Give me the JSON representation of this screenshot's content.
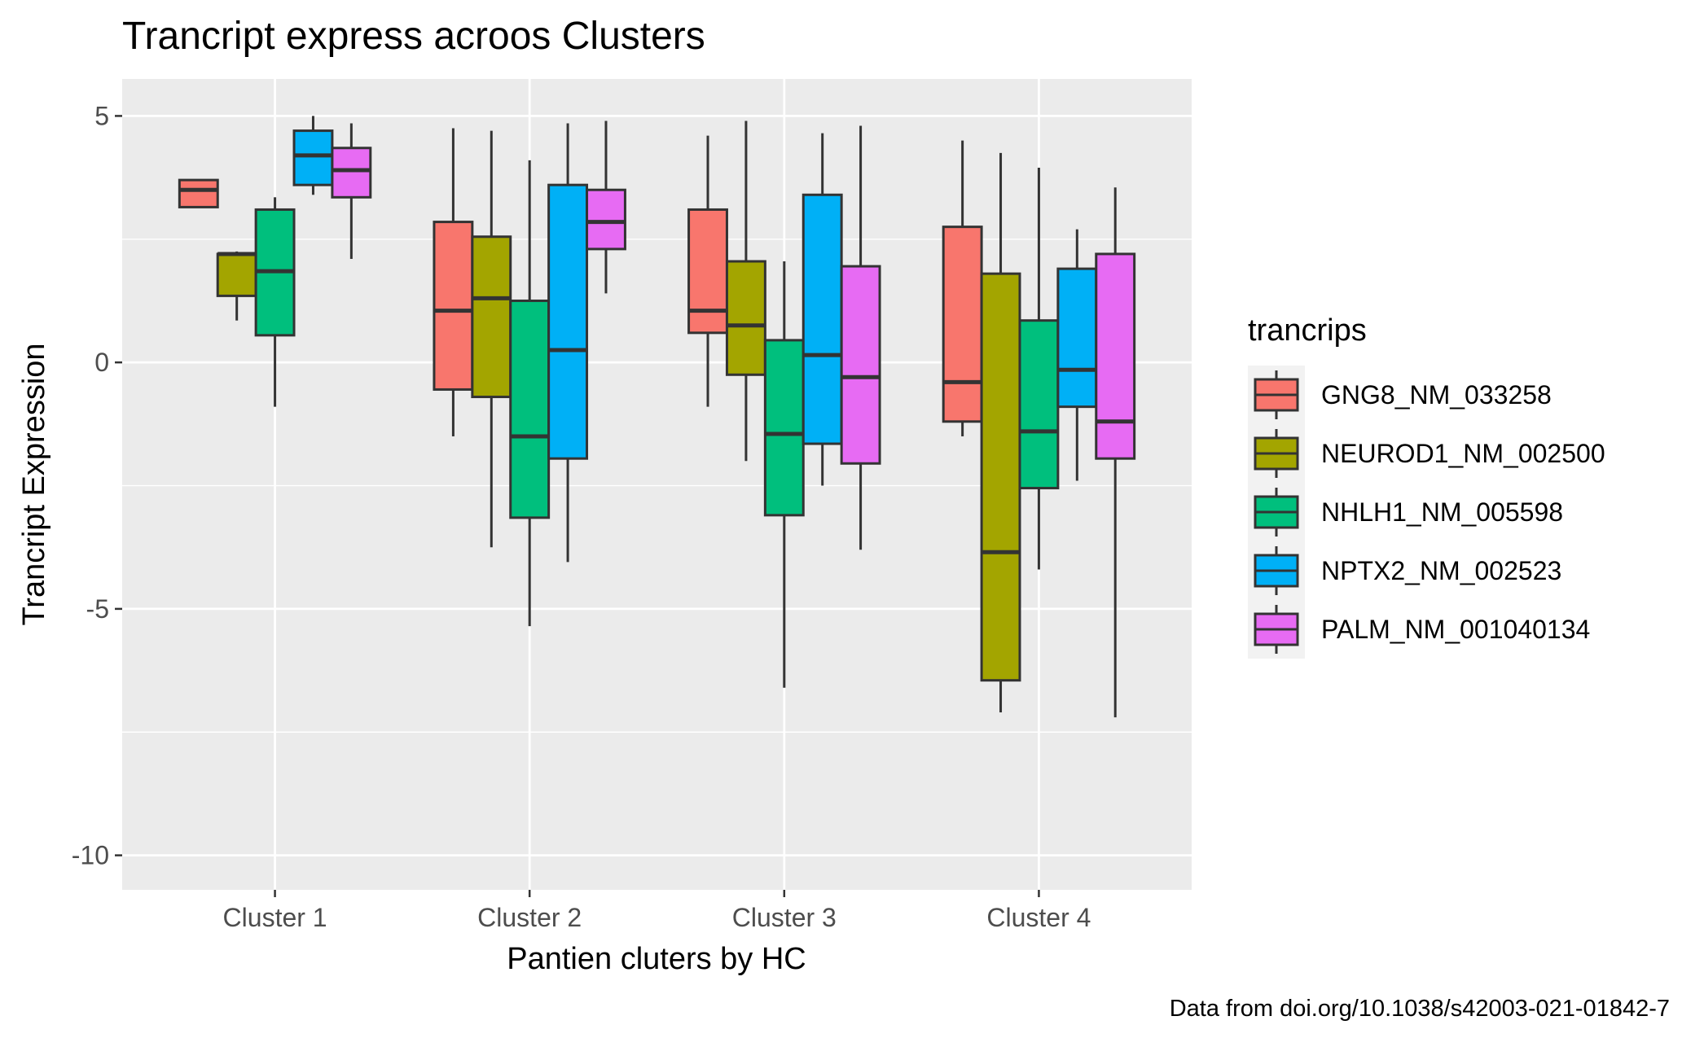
{
  "chart_data": {
    "type": "boxplot",
    "title": "Trancript express acroos Clusters",
    "xlabel": "Pantien cluters by HC",
    "ylabel": "Trancript Expression",
    "caption": "Data from doi.org/10.1038/s42003-021-01842-7",
    "categories": [
      "Cluster 1",
      "Cluster 2",
      "Cluster 3",
      "Cluster 4"
    ],
    "y_ticks": [
      5,
      0,
      -5,
      -10
    ],
    "y_tick_labels": [
      "5",
      "0",
      "-5",
      "-10"
    ],
    "ylim": [
      -10.7,
      5.75
    ],
    "grid": true,
    "legend": {
      "title": "trancrips",
      "position": "right"
    },
    "series": [
      {
        "name": "GNG8_NM_033258",
        "color": "#F8766D",
        "boxes": [
          {
            "min": 3.15,
            "q1": 3.15,
            "median": 3.5,
            "q3": 3.7,
            "max": 3.7
          },
          {
            "min": -1.5,
            "q1": -0.55,
            "median": 1.05,
            "q3": 2.85,
            "max": 4.75
          },
          {
            "min": -0.9,
            "q1": 0.6,
            "median": 1.05,
            "q3": 3.1,
            "max": 4.6
          },
          {
            "min": -1.5,
            "q1": -1.2,
            "median": -0.4,
            "q3": 2.75,
            "max": 4.5
          }
        ]
      },
      {
        "name": "NEUROD1_NM_002500",
        "color": "#A3A500",
        "boxes": [
          {
            "min": 0.85,
            "q1": 1.35,
            "median": 2.2,
            "q3": 2.2,
            "max": 2.25
          },
          {
            "min": -3.75,
            "q1": -0.7,
            "median": 1.3,
            "q3": 2.55,
            "max": 4.7
          },
          {
            "min": -2.0,
            "q1": -0.25,
            "median": 0.75,
            "q3": 2.05,
            "max": 4.9
          },
          {
            "min": -7.1,
            "q1": -6.45,
            "median": -3.85,
            "q3": 1.8,
            "max": 4.25
          }
        ]
      },
      {
        "name": "NHLH1_NM_005598",
        "color": "#00BF7D",
        "boxes": [
          {
            "min": -0.9,
            "q1": 0.55,
            "median": 1.85,
            "q3": 3.1,
            "max": 3.35
          },
          {
            "min": -5.35,
            "q1": -3.15,
            "median": -1.5,
            "q3": 1.25,
            "max": 4.1
          },
          {
            "min": -6.6,
            "q1": -3.1,
            "median": -1.45,
            "q3": 0.45,
            "max": 2.05
          },
          {
            "min": -4.2,
            "q1": -2.55,
            "median": -1.4,
            "q3": 0.85,
            "max": 3.95
          }
        ]
      },
      {
        "name": "NPTX2_NM_002523",
        "color": "#00B0F6",
        "boxes": [
          {
            "min": 3.4,
            "q1": 3.6,
            "median": 4.2,
            "q3": 4.7,
            "max": 5.0
          },
          {
            "min": -4.05,
            "q1": -1.95,
            "median": 0.25,
            "q3": 3.6,
            "max": 4.85
          },
          {
            "min": -2.5,
            "q1": -1.65,
            "median": 0.15,
            "q3": 3.4,
            "max": 4.65
          },
          {
            "min": -2.4,
            "q1": -0.9,
            "median": -0.15,
            "q3": 1.9,
            "max": 2.7
          }
        ]
      },
      {
        "name": "PALM_NM_001040134",
        "color": "#E76BF3",
        "boxes": [
          {
            "min": 2.1,
            "q1": 3.35,
            "median": 3.9,
            "q3": 4.35,
            "max": 4.85
          },
          {
            "min": 1.4,
            "q1": 2.3,
            "median": 2.85,
            "q3": 3.5,
            "max": 4.9
          },
          {
            "min": -3.8,
            "q1": -2.05,
            "median": -0.3,
            "q3": 1.95,
            "max": 4.8
          },
          {
            "min": -7.2,
            "q1": -1.95,
            "median": -1.2,
            "q3": 2.2,
            "max": 3.55
          }
        ]
      }
    ]
  }
}
